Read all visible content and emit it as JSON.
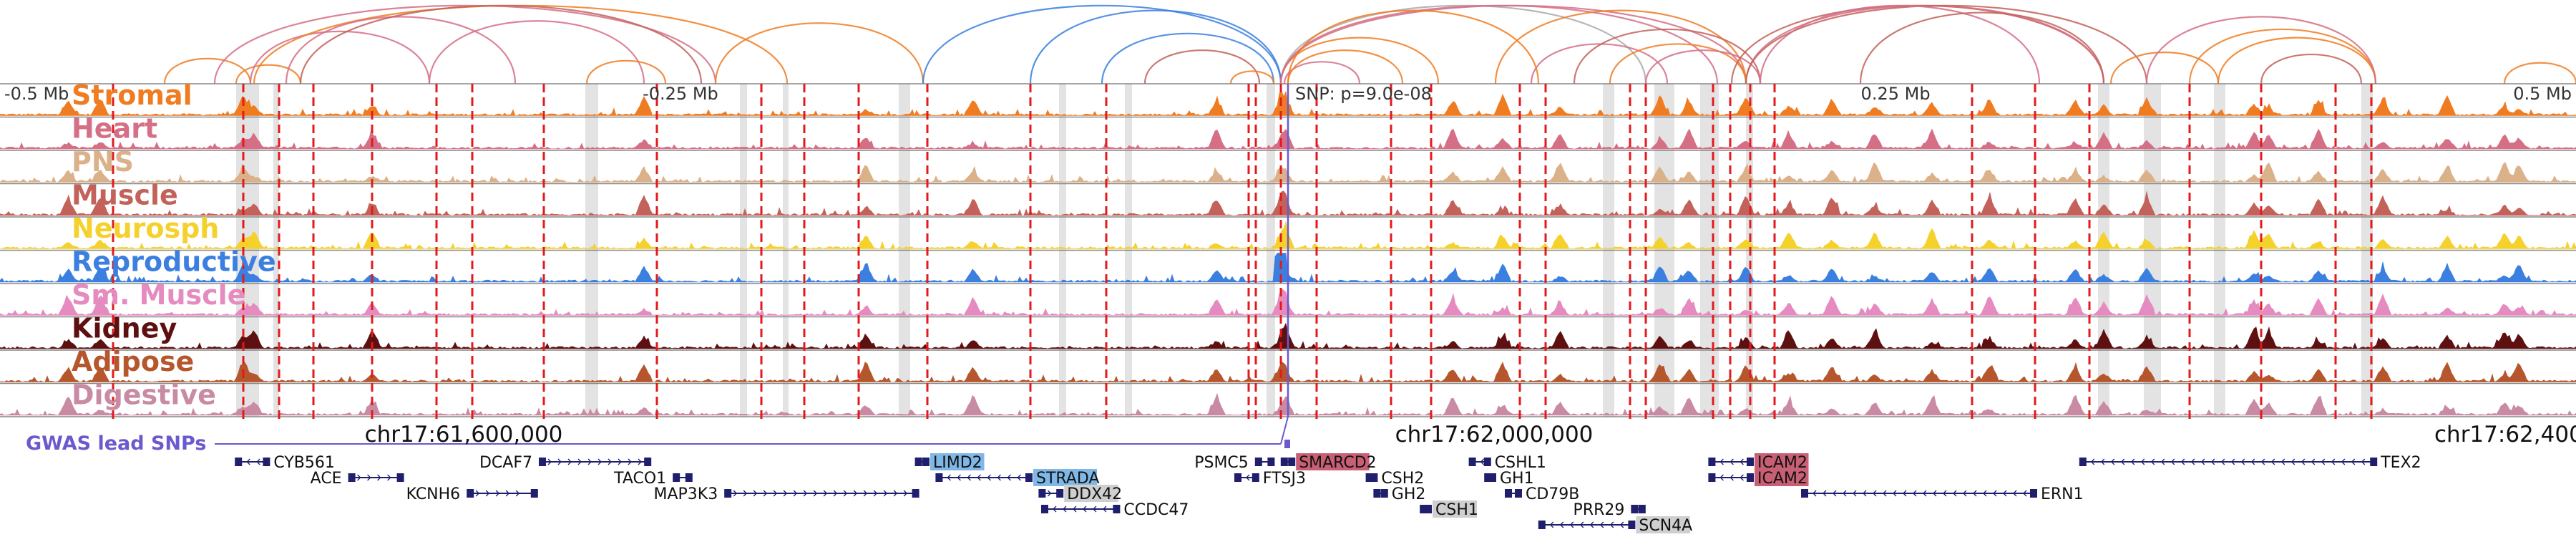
{
  "colors": {
    "frame": "#888888",
    "snp_line": "#e31a1c",
    "highlight": "#d9d9d9",
    "gwas": "#6a5acd",
    "gene": "#1f1f6e"
  },
  "axis_labels": [
    {
      "text": "-0.5 Mb",
      "at": -0.5
    },
    {
      "text": "-0.25 Mb",
      "at": -0.25
    },
    {
      "text": "0.25 Mb",
      "at": 0.25
    },
    {
      "text": "0.5 Mb",
      "at": 0.5
    }
  ],
  "lead_snp": {
    "label": "SNP: p=9.0e-08"
  },
  "gwas_label": "GWAS lead SNPs",
  "chrom_ticks": [
    {
      "text": "chr17:61,600,000",
      "at": 0.18
    },
    {
      "text": "chr17:62,000,000",
      "at": 0.58
    },
    {
      "text": "chr17:62,400",
      "at": 0.985
    }
  ],
  "tracks": [
    {
      "name": "Stromal",
      "color": "#f07c22"
    },
    {
      "name": "Heart",
      "color": "#d56f86"
    },
    {
      "name": "PNS",
      "color": "#dbb189"
    },
    {
      "name": "Muscle",
      "color": "#c2625a"
    },
    {
      "name": "Neurosph",
      "color": "#f5d12b"
    },
    {
      "name": "Reproductive",
      "color": "#3b7fe0"
    },
    {
      "name": "Sm. Muscle",
      "color": "#e58bc0"
    },
    {
      "name": "Kidney",
      "color": "#5e1010"
    },
    {
      "name": "Adipose",
      "color": "#b5562d"
    },
    {
      "name": "Digestive",
      "color": "#c98aa3"
    }
  ],
  "genes": [
    {
      "name": "CYB561",
      "start": 0.092,
      "end": 0.104,
      "row": 0,
      "strand": "-",
      "label_side": "right"
    },
    {
      "name": "ACE",
      "start": 0.136,
      "end": 0.156,
      "row": 1,
      "strand": "+",
      "label_side": "left"
    },
    {
      "name": "KCNH6",
      "start": 0.182,
      "end": 0.208,
      "row": 2,
      "strand": "+",
      "label_side": "left"
    },
    {
      "name": "DCAF7",
      "start": 0.21,
      "end": 0.252,
      "row": 0,
      "strand": "+",
      "label_side": "left"
    },
    {
      "name": "TACO1",
      "start": 0.262,
      "end": 0.268,
      "row": 1,
      "strand": "+",
      "label_side": "left"
    },
    {
      "name": "MAP3K3",
      "start": 0.282,
      "end": 0.356,
      "row": 2,
      "strand": "+",
      "label_side": "left"
    },
    {
      "name": "LIMD2",
      "start": 0.356,
      "end": 0.36,
      "row": 0,
      "strand": "-",
      "label_side": "right",
      "box": "#7fb7e6"
    },
    {
      "name": "STRADA",
      "start": 0.364,
      "end": 0.4,
      "row": 1,
      "strand": "-",
      "label_side": "right",
      "box": "#7fb7e6"
    },
    {
      "name": "DDX42",
      "start": 0.404,
      "end": 0.412,
      "row": 2,
      "strand": "+",
      "label_side": "right",
      "box": "#cfcfcf"
    },
    {
      "name": "CCDC47",
      "start": 0.405,
      "end": 0.434,
      "row": 3,
      "strand": "-",
      "label_side": "right"
    },
    {
      "name": "PSMC5",
      "start": 0.488,
      "end": 0.494,
      "row": 0,
      "strand": "+",
      "label_side": "left"
    },
    {
      "name": "SMARCD2",
      "start": 0.498,
      "end": 0.502,
      "row": 0,
      "strand": "-",
      "label_side": "right",
      "box": "#c95f74"
    },
    {
      "name": "FTSJ3",
      "start": 0.48,
      "end": 0.488,
      "row": 1,
      "strand": "-",
      "label_side": "right"
    },
    {
      "name": "CSH2",
      "start": 0.531,
      "end": 0.534,
      "row": 1,
      "strand": "-",
      "label_side": "right"
    },
    {
      "name": "GH2",
      "start": 0.534,
      "end": 0.538,
      "row": 2,
      "strand": "-",
      "label_side": "right"
    },
    {
      "name": "CSH1",
      "start": 0.552,
      "end": 0.555,
      "row": 3,
      "strand": "-",
      "label_side": "right",
      "box": "#cfcfcf"
    },
    {
      "name": "CSHL1",
      "start": 0.571,
      "end": 0.578,
      "row": 0,
      "strand": "-",
      "label_side": "right"
    },
    {
      "name": "GH1",
      "start": 0.577,
      "end": 0.58,
      "row": 1,
      "strand": "-",
      "label_side": "right"
    },
    {
      "name": "CD79B",
      "start": 0.585,
      "end": 0.59,
      "row": 2,
      "strand": "-",
      "label_side": "right"
    },
    {
      "name": "PRR29",
      "start": 0.634,
      "end": 0.638,
      "row": 3,
      "strand": "+",
      "label_side": "left"
    },
    {
      "name": "SCN4A",
      "start": 0.598,
      "end": 0.634,
      "row": 4,
      "strand": "-",
      "label_side": "right",
      "box": "#cfcfcf"
    },
    {
      "name": "ICAM2",
      "start": 0.664,
      "end": 0.68,
      "row": 0,
      "strand": "-",
      "label_side": "right",
      "box": "#c95f74"
    },
    {
      "name": "ICAM2",
      "start": 0.664,
      "end": 0.68,
      "row": 1,
      "strand": "-",
      "label_side": "right",
      "box": "#c95f74"
    },
    {
      "name": "ERN1",
      "start": 0.7,
      "end": 0.79,
      "row": 2,
      "strand": "-",
      "label_side": "right"
    },
    {
      "name": "TEX2",
      "start": 0.808,
      "end": 0.922,
      "row": 0,
      "strand": "-",
      "label_side": "right"
    }
  ]
}
